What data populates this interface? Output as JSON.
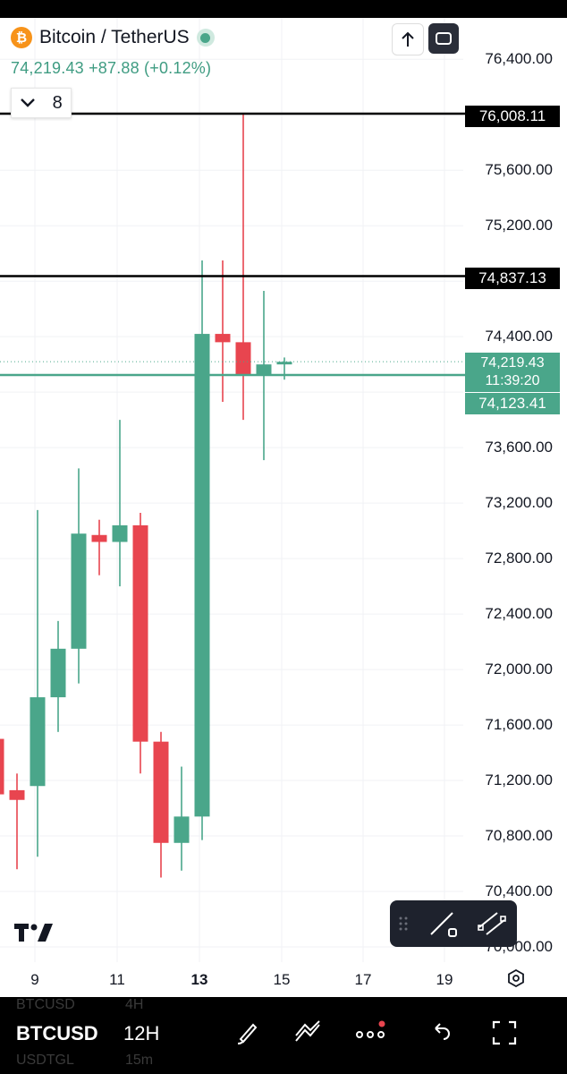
{
  "header": {
    "coin_symbol": "₿",
    "pair_title": "Bitcoin / TetherUS",
    "price_change": "74,219.43 +87.88 (+0.12%)",
    "indicator_count": "8"
  },
  "price_axis": {
    "labels": [
      "76,400.00",
      "75,600.00",
      "75,200.00",
      "74,400.00",
      "73,600.00",
      "73,200.00",
      "72,800.00",
      "72,400.00",
      "72,000.00",
      "71,600.00",
      "71,200.00",
      "70,800.00",
      "70,400.00",
      "70,000.00"
    ],
    "level_high": "76,008.11",
    "level_low": "74,837.13",
    "current_price": "74,219.43",
    "countdown": "11:39:20",
    "prev_close": "74,123.41"
  },
  "time_axis": {
    "labels": [
      "9",
      "11",
      "13",
      "15",
      "17",
      "19"
    ],
    "bold_label": "13"
  },
  "bottom_bar": {
    "symbol": "BTCUSD",
    "timeframe": "12H",
    "ghost_symbol_1": "BTCUSD",
    "ghost_tf_1": "4H",
    "ghost_symbol_2": "USDTGL",
    "ghost_tf_2": "15m"
  },
  "colors": {
    "up": "#4aa68a",
    "down": "#e8454f",
    "level_line": "#000000"
  },
  "icons": {
    "up_arrow": "arrow-up-icon",
    "expand": "expand-icon",
    "chevron": "chevron-down-icon",
    "gear": "settings-icon",
    "brush": "brush-icon",
    "drawing": "drawing-tools-icon",
    "more": "more-icon",
    "undo": "undo-icon",
    "fullscreen": "fullscreen-icon"
  },
  "chart_data": {
    "type": "candlestick",
    "x_day_labels": [
      "9",
      "11",
      "13",
      "15",
      "17",
      "19"
    ],
    "y_range": [
      70000,
      76400
    ],
    "candles": [
      {
        "open": 71500,
        "high": 71500,
        "close": 71100,
        "low": 70550,
        "dir": "down"
      },
      {
        "open": 71130,
        "high": 71250,
        "close": 71060,
        "low": 70560,
        "dir": "down"
      },
      {
        "open": 71160,
        "high": 73150,
        "close": 71800,
        "low": 70650,
        "dir": "up"
      },
      {
        "open": 71800,
        "high": 72350,
        "close": 72150,
        "low": 71550,
        "dir": "up"
      },
      {
        "open": 72150,
        "high": 73450,
        "close": 72980,
        "low": 71900,
        "dir": "up"
      },
      {
        "open": 72970,
        "high": 73080,
        "close": 72920,
        "low": 72680,
        "dir": "down"
      },
      {
        "open": 72920,
        "high": 73800,
        "close": 73040,
        "low": 72600,
        "dir": "up"
      },
      {
        "open": 73040,
        "high": 73130,
        "close": 71480,
        "low": 71250,
        "dir": "down"
      },
      {
        "open": 71480,
        "high": 71550,
        "close": 70750,
        "low": 70500,
        "dir": "down"
      },
      {
        "open": 70750,
        "high": 71300,
        "close": 70940,
        "low": 70550,
        "dir": "up"
      },
      {
        "open": 70940,
        "high": 74950,
        "close": 74420,
        "low": 70770,
        "dir": "up"
      },
      {
        "open": 74420,
        "high": 74950,
        "close": 74360,
        "low": 73930,
        "dir": "down"
      },
      {
        "open": 74360,
        "high": 76010,
        "close": 74120,
        "low": 73800,
        "dir": "down"
      },
      {
        "open": 74120,
        "high": 74730,
        "close": 74200,
        "low": 73510,
        "dir": "up"
      },
      {
        "open": 74200,
        "high": 74250,
        "close": 74219,
        "low": 74090,
        "dir": "up"
      }
    ],
    "levels": [
      76008.11,
      74837.13,
      74123.41
    ],
    "current_price": 74219.43
  }
}
